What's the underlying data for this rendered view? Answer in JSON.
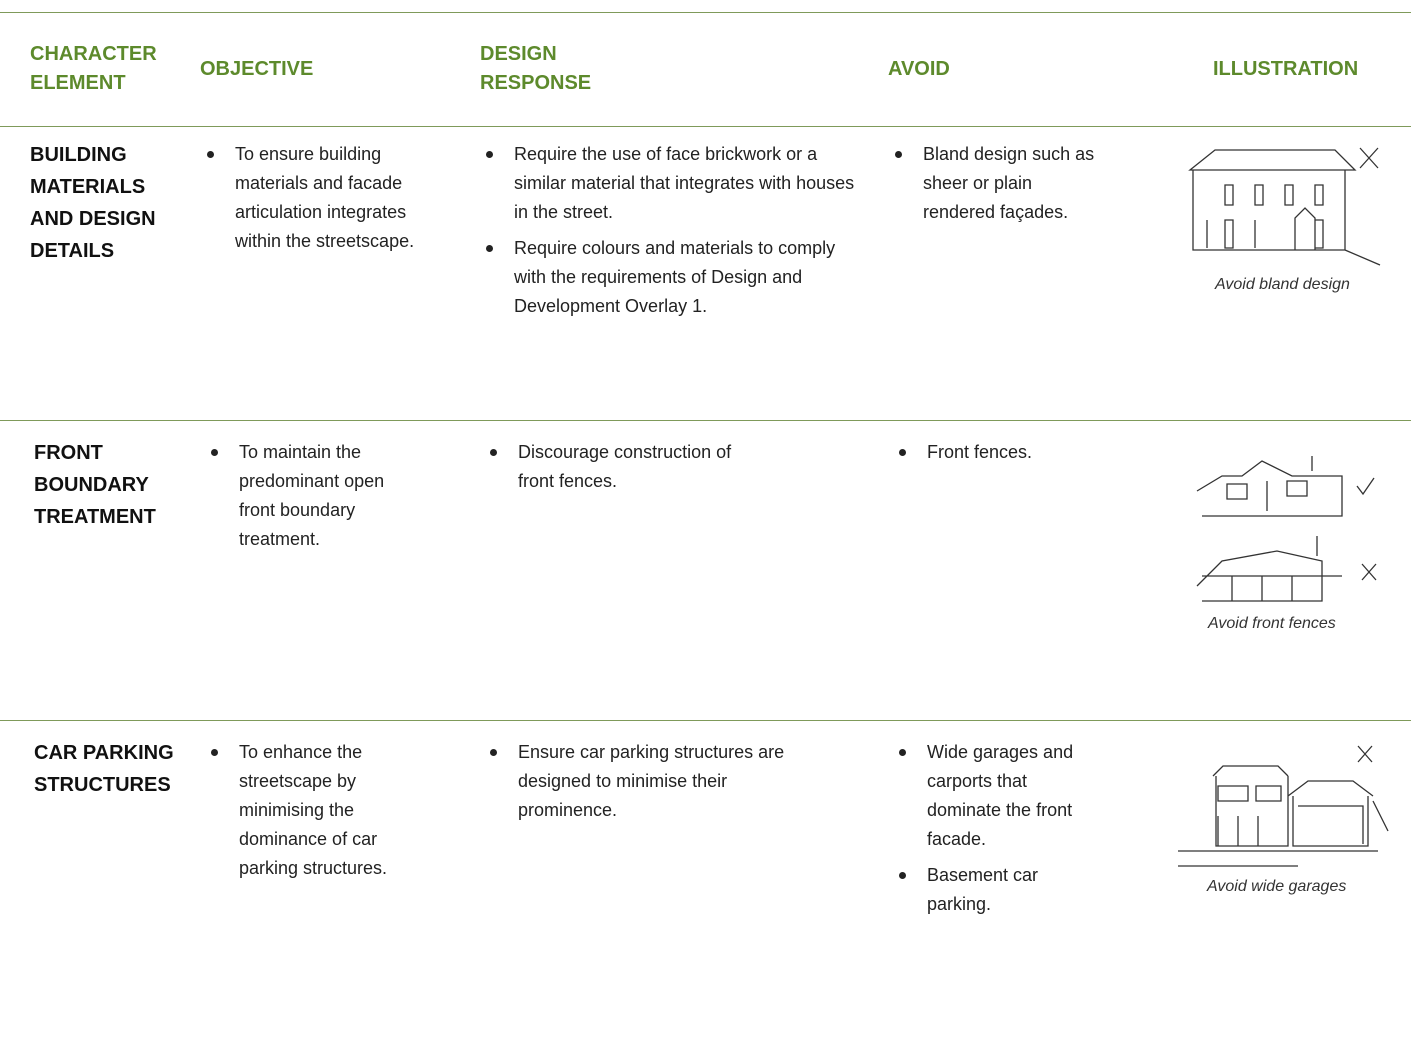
{
  "header": {
    "columns": [
      "CHARACTER ELEMENT",
      "OBJECTIVE",
      "DESIGN RESPONSE",
      "AVOID",
      "ILLUSTRATION"
    ]
  },
  "rows": [
    {
      "element": "BUILDING MATERIALS AND DESIGN DETAILS",
      "objective": [
        "To ensure building materials and facade articulation integrates within the streetscape."
      ],
      "design_response": [
        "Require the use of face brickwork or a similar material that integrates with houses in the street.",
        "Require colours and materials to comply with the requirements of Design and Development Overlay 1."
      ],
      "avoid": [
        "Bland design such as sheer or plain rendered façades."
      ],
      "illustration_caption": "Avoid bland design"
    },
    {
      "element": "FRONT BOUNDARY TREATMENT",
      "objective": [
        "To maintain the predominant open front boundary treatment."
      ],
      "design_response": [
        "Discourage construction of front fences."
      ],
      "avoid": [
        "Front fences."
      ],
      "illustration_caption": "Avoid front fences"
    },
    {
      "element": "CAR PARKING STRUCTURES",
      "objective": [
        "To enhance the streetscape by minimising the dominance of car parking structures."
      ],
      "design_response": [
        "Ensure car parking structures are designed to minimise their prominence."
      ],
      "avoid": [
        "Wide garages and carports that dominate the front facade.",
        "Basement car parking."
      ],
      "illustration_caption": "Avoid wide garages"
    }
  ]
}
